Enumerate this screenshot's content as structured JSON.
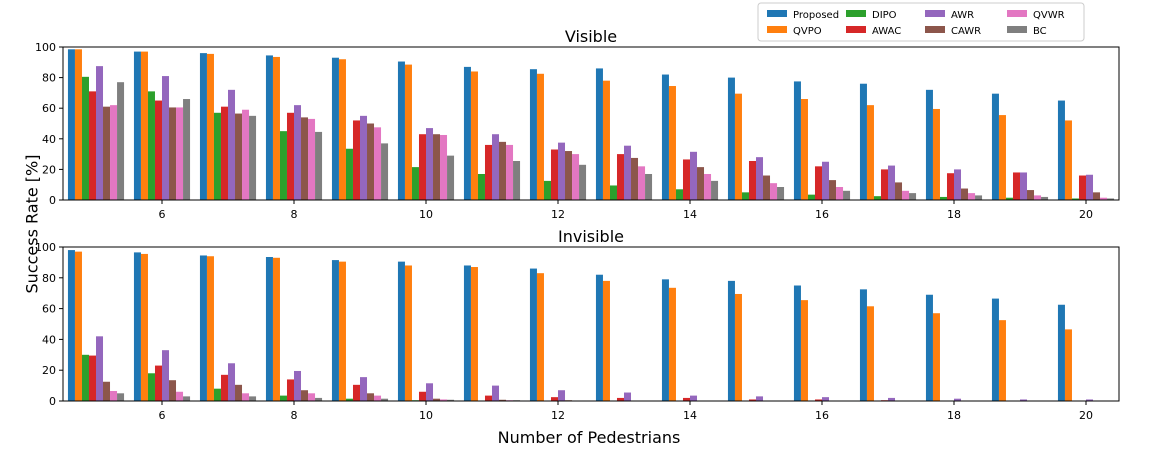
{
  "chart_data": {
    "type": "bar",
    "shared": {
      "xlabel": "Number of Pedestrians",
      "ylabel": "Success Rate [%]",
      "ylim": [
        0,
        100
      ],
      "yticks": [
        0,
        20,
        40,
        60,
        80,
        100
      ],
      "x": [
        5,
        6,
        7,
        8,
        9,
        10,
        11,
        12,
        13,
        14,
        15,
        16,
        17,
        18,
        19,
        20
      ],
      "xticks": [
        6,
        8,
        10,
        12,
        14,
        16,
        18,
        20
      ],
      "legend_position": "top-right",
      "legend": [
        "Proposed",
        "QVPO",
        "DIPO",
        "AWAC",
        "AWR",
        "CAWR",
        "QVWR",
        "BC"
      ]
    },
    "panels": [
      {
        "title": "Visible",
        "series": [
          {
            "name": "Proposed",
            "color": "#1f77b4",
            "values": [
              98.5,
              97,
              96,
              94.5,
              93,
              90.5,
              87,
              85.5,
              86,
              82,
              80,
              77.5,
              76,
              72,
              69.5,
              65
            ]
          },
          {
            "name": "QVPO",
            "color": "#ff7f0e",
            "values": [
              98.5,
              97,
              95.5,
              93.5,
              92,
              88.5,
              84,
              82.5,
              78,
              74.5,
              69.5,
              66,
              62,
              59.5,
              55.5,
              52
            ]
          },
          {
            "name": "DIPO",
            "color": "#2ca02c",
            "values": [
              80.5,
              71,
              57,
              45,
              33.5,
              21.5,
              17,
              12.5,
              9.5,
              7,
              5,
              3.5,
              2.5,
              2,
              1.5,
              1
            ]
          },
          {
            "name": "AWAC",
            "color": "#d62728",
            "values": [
              71,
              65,
              61,
              57,
              52,
              43,
              36,
              33,
              30,
              26.5,
              25.5,
              22,
              20,
              17.5,
              18,
              16
            ]
          },
          {
            "name": "AWR",
            "color": "#9467bd",
            "values": [
              87.5,
              81,
              72,
              62,
              55,
              47,
              43,
              37.5,
              35.5,
              31.5,
              28,
              25,
              22.5,
              20,
              18,
              16.5
            ]
          },
          {
            "name": "CAWR",
            "color": "#8c564b",
            "values": [
              61,
              60.5,
              56.5,
              54,
              50,
              43,
              38,
              32,
              27.5,
              21.5,
              16,
              13,
              11.5,
              7.5,
              6.5,
              5
            ]
          },
          {
            "name": "QVWR",
            "color": "#e377c2",
            "values": [
              62,
              60.5,
              59,
              53,
              47.5,
              42.5,
              36,
              30,
              22,
              17,
              11,
              8.5,
              6,
              4.5,
              3,
              1.5
            ]
          },
          {
            "name": "BC",
            "color": "#7f7f7f",
            "values": [
              77,
              66,
              55,
              44.5,
              37,
              29,
              25.5,
              23,
              17,
              12.5,
              8.5,
              6,
              4.5,
              3,
              2,
              1
            ]
          }
        ]
      },
      {
        "title": "Invisible",
        "series": [
          {
            "name": "Proposed",
            "color": "#1f77b4",
            "values": [
              98,
              96.5,
              94.5,
              93.5,
              91.5,
              90.5,
              88,
              86,
              82,
              79,
              78,
              75,
              72.5,
              69,
              66.5,
              62.5
            ]
          },
          {
            "name": "QVPO",
            "color": "#ff7f0e",
            "values": [
              97,
              95.5,
              94,
              93,
              90.5,
              88,
              87,
              83,
              78,
              73.5,
              69.5,
              65.5,
              61.5,
              57,
              52.5,
              46.5
            ]
          },
          {
            "name": "DIPO",
            "color": "#2ca02c",
            "values": [
              30,
              18,
              8,
              3.5,
              1.5,
              0.5,
              0.3,
              0.3,
              0.2,
              0.2,
              0.1,
              0.1,
              0.1,
              0.1,
              0.1,
              0.1
            ]
          },
          {
            "name": "AWAC",
            "color": "#d62728",
            "values": [
              29.5,
              23,
              17,
              14,
              10.5,
              6,
              3.5,
              2.5,
              2,
              2,
              1,
              1,
              0.5,
              0.3,
              0.3,
              0.3
            ]
          },
          {
            "name": "AWR",
            "color": "#9467bd",
            "values": [
              42,
              33,
              24.5,
              19.5,
              15.5,
              11.5,
              10,
              7,
              5.5,
              3.5,
              3,
              2.5,
              2,
              1.5,
              1,
              1
            ]
          },
          {
            "name": "CAWR",
            "color": "#8c564b",
            "values": [
              12.5,
              13.5,
              10.5,
              7,
              5,
              1.5,
              0.8,
              0.5,
              0.3,
              0.2,
              0.2,
              0.2,
              0.1,
              0.1,
              0.1,
              0.1
            ]
          },
          {
            "name": "QVWR",
            "color": "#e377c2",
            "values": [
              6.5,
              6,
              5,
              5,
              3.5,
              1,
              0.5,
              0.3,
              0.3,
              0.2,
              0.2,
              0.2,
              0.1,
              0.1,
              0.1,
              0.1
            ]
          },
          {
            "name": "BC",
            "color": "#7f7f7f",
            "values": [
              5,
              3,
              3,
              2,
              1.5,
              0.8,
              0.5,
              0.3,
              0.3,
              0.2,
              0.2,
              0.2,
              0.1,
              0.1,
              0.1,
              0.1
            ]
          }
        ]
      }
    ]
  }
}
